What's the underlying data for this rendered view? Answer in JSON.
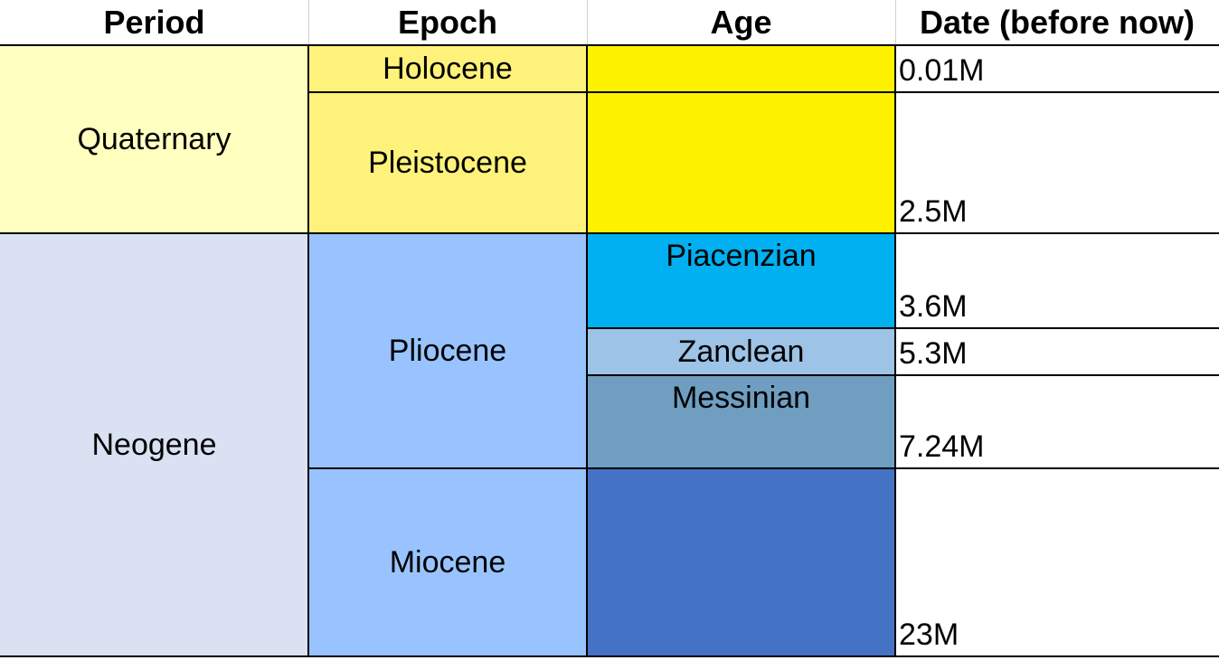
{
  "headers": {
    "period": "Period",
    "epoch": "Epoch",
    "age": "Age",
    "date": "Date (before now)"
  },
  "periods": {
    "quaternary": "Quaternary",
    "neogene": "Neogene"
  },
  "epochs": {
    "holocene": "Holocene",
    "pleistocene": "Pleistocene",
    "pliocene": "Pliocene",
    "miocene": "Miocene"
  },
  "ages": {
    "piacenzian": "Piacenzian",
    "zanclean": "Zanclean",
    "messinian": "Messinian"
  },
  "dates": {
    "holocene": "0.01M",
    "pleistocene": "2.5M",
    "piacenzian": "3.6M",
    "zanclean": "5.3M",
    "messinian": "7.24M",
    "miocene": "23M"
  },
  "colors": {
    "quaternary": "#ffffc0",
    "holocene_epoch": "#fff27a",
    "pleistocene_epoch": "#fff27a",
    "holocene_age": "#fff200",
    "pleistocene_age": "#fff200",
    "neogene": "#d9e1f2",
    "pliocene": "#99c3ff",
    "miocene": "#99c3ff",
    "piacenzian": "#00b0f0",
    "zanclean": "#9dc3e6",
    "messinian": "#6f9ec0",
    "miocene_age": "#4472c4"
  }
}
